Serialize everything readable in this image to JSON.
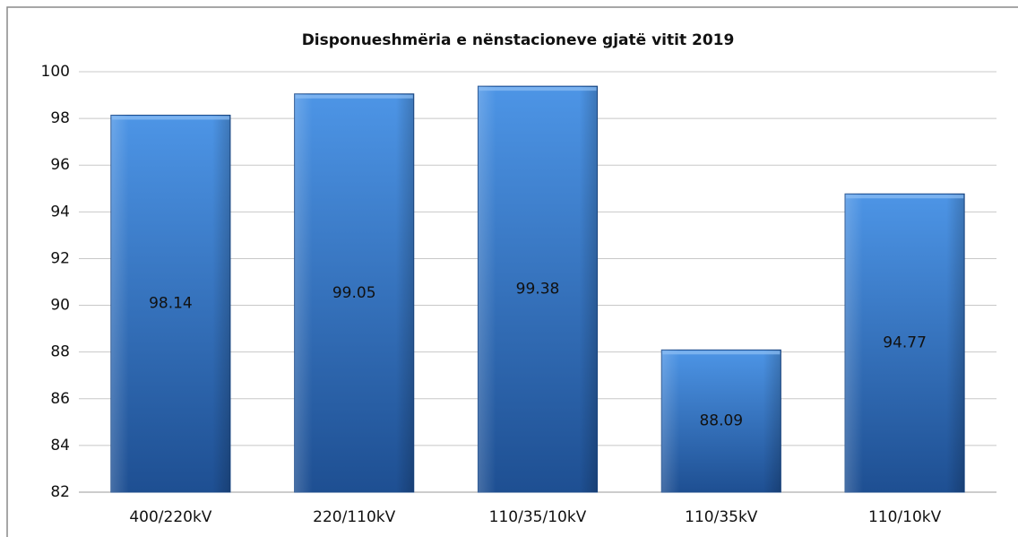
{
  "chart_data": {
    "type": "bar",
    "title": "Disponueshmëria e nënstacioneve gjatë vitit 2019",
    "categories": [
      "400/220kV",
      "220/110kV",
      "110/35/10kV",
      "110/35kV",
      "110/10kV"
    ],
    "values": [
      98.14,
      99.05,
      99.38,
      88.09,
      94.77
    ],
    "color": "#3a7fd5",
    "ylim": [
      82,
      100
    ],
    "yticks": [
      82,
      84,
      86,
      88,
      90,
      92,
      94,
      96,
      98,
      100
    ],
    "grid": true
  }
}
